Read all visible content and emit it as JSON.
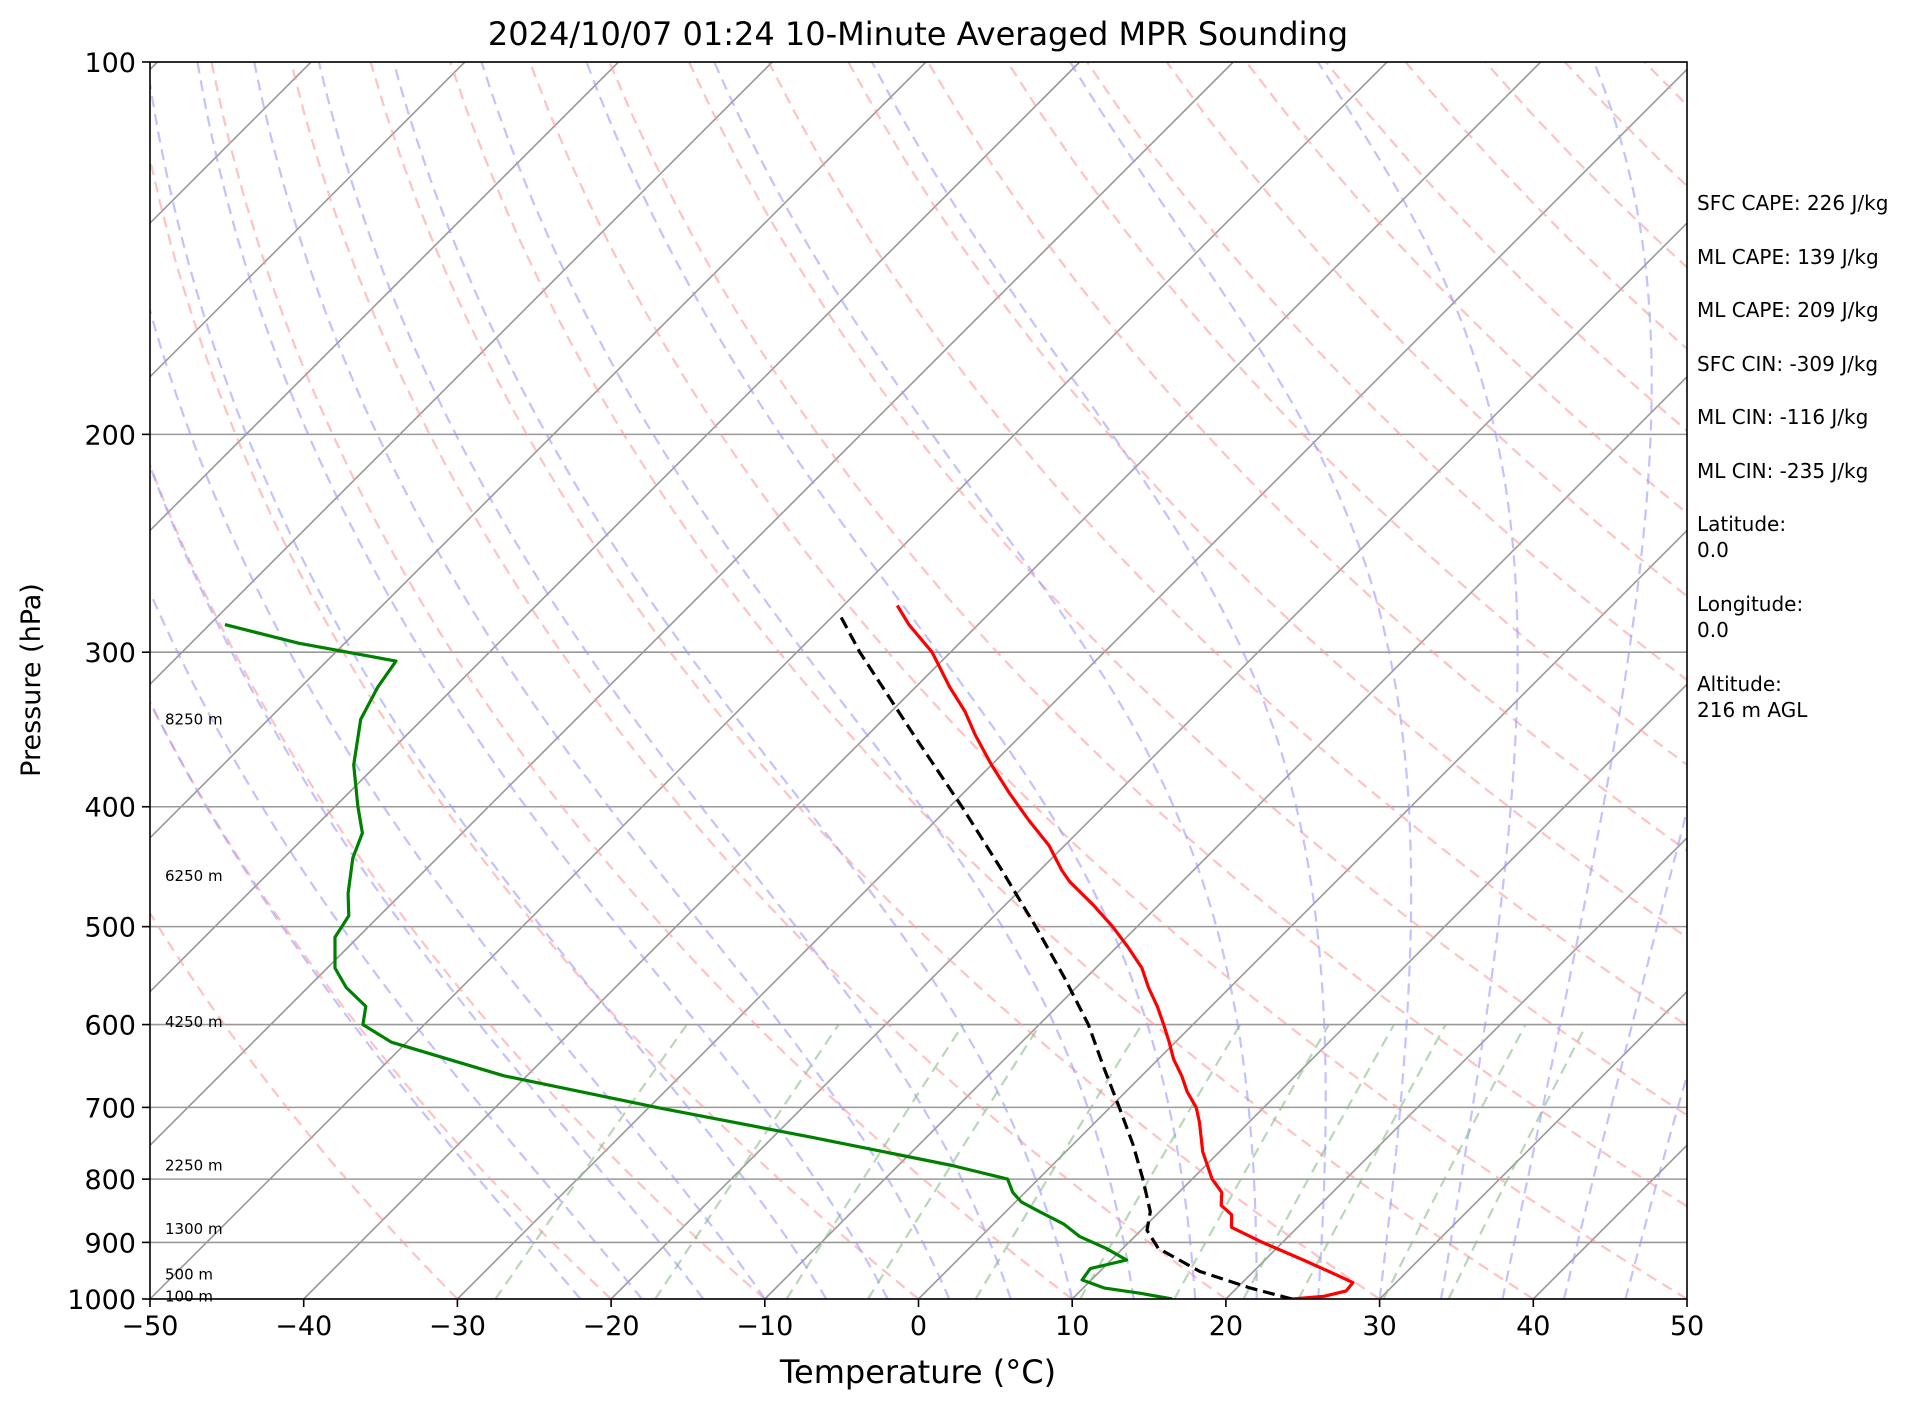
{
  "chart_data": {
    "type": "skew-t",
    "title": "2024/10/07 01:24 10-Minute Averaged MPR Sounding",
    "xlabel": "Temperature (°C)",
    "ylabel": "Pressure (hPa)",
    "xlim": [
      -50,
      50
    ],
    "ylim": [
      1000,
      100
    ],
    "y_scale": "log",
    "x_ticks": [
      "−50",
      "−40",
      "−30",
      "−20",
      "−10",
      "0",
      "10",
      "20",
      "30",
      "40",
      "50"
    ],
    "y_ticks": [
      "100",
      "200",
      "300",
      "400",
      "500",
      "600",
      "700",
      "800",
      "900",
      "1000"
    ],
    "height_labels": [
      {
        "text": "8250 m",
        "pressure": 340
      },
      {
        "text": "6250 m",
        "pressure": 455
      },
      {
        "text": "4250 m",
        "pressure": 597
      },
      {
        "text": "2250 m",
        "pressure": 780
      },
      {
        "text": "1300 m",
        "pressure": 878
      },
      {
        "text": "500 m",
        "pressure": 955
      },
      {
        "text": "100 m",
        "pressure": 995
      }
    ],
    "series": [
      {
        "role": "temperature",
        "color": "#ff0000",
        "points": [
          [
            1000,
            24.3
          ],
          [
            995,
            26.2
          ],
          [
            985,
            27.3
          ],
          [
            970,
            27.2
          ],
          [
            955,
            25.5
          ],
          [
            930,
            22.5
          ],
          [
            900,
            18.7
          ],
          [
            875,
            15.7
          ],
          [
            855,
            14.9
          ],
          [
            840,
            13.6
          ],
          [
            820,
            12.8
          ],
          [
            800,
            11.3
          ],
          [
            760,
            8.9
          ],
          [
            720,
            6.8
          ],
          [
            700,
            5.6
          ],
          [
            680,
            4.0
          ],
          [
            660,
            2.6
          ],
          [
            640,
            1.0
          ],
          [
            620,
            -0.4
          ],
          [
            600,
            -1.9
          ],
          [
            580,
            -3.5
          ],
          [
            560,
            -5.3
          ],
          [
            540,
            -7.0
          ],
          [
            520,
            -9.2
          ],
          [
            500,
            -11.6
          ],
          [
            480,
            -14.3
          ],
          [
            460,
            -17.3
          ],
          [
            450,
            -18.6
          ],
          [
            430,
            -21.0
          ],
          [
            410,
            -24.0
          ],
          [
            390,
            -27.0
          ],
          [
            370,
            -30.0
          ],
          [
            350,
            -33.0
          ],
          [
            335,
            -35.2
          ],
          [
            320,
            -37.8
          ],
          [
            300,
            -41.2
          ],
          [
            285,
            -44.5
          ],
          [
            275,
            -46.5
          ]
        ]
      },
      {
        "role": "dewpoint",
        "color": "#008000",
        "points": [
          [
            1000,
            16.5
          ],
          [
            990,
            14.2
          ],
          [
            980,
            11.4
          ],
          [
            965,
            9.4
          ],
          [
            945,
            9.2
          ],
          [
            930,
            11.0
          ],
          [
            910,
            8.9
          ],
          [
            890,
            6.4
          ],
          [
            870,
            4.6
          ],
          [
            850,
            2.2
          ],
          [
            835,
            0.4
          ],
          [
            820,
            -0.8
          ],
          [
            800,
            -2.0
          ],
          [
            780,
            -6.5
          ],
          [
            740,
            -17.5
          ],
          [
            700,
            -29.5
          ],
          [
            660,
            -41.5
          ],
          [
            620,
            -51.0
          ],
          [
            600,
            -54.0
          ],
          [
            580,
            -55.0
          ],
          [
            560,
            -57.5
          ],
          [
            540,
            -59.5
          ],
          [
            510,
            -61.5
          ],
          [
            490,
            -62.0
          ],
          [
            470,
            -63.5
          ],
          [
            440,
            -65.5
          ],
          [
            420,
            -66.5
          ],
          [
            400,
            -68.5
          ],
          [
            370,
            -71.5
          ],
          [
            340,
            -74.0
          ],
          [
            320,
            -75.0
          ],
          [
            305,
            -75.5
          ],
          [
            295,
            -83.0
          ],
          [
            285,
            -89.0
          ]
        ]
      },
      {
        "role": "parcel",
        "color": "#000000",
        "style": "dashed",
        "points": [
          [
            1000,
            24.3
          ],
          [
            980,
            20.9
          ],
          [
            950,
            16.5
          ],
          [
            910,
            12.3
          ],
          [
            880,
            10.4
          ],
          [
            850,
            9.4
          ],
          [
            800,
            6.8
          ],
          [
            750,
            3.9
          ],
          [
            700,
            0.6
          ],
          [
            650,
            -3.0
          ],
          [
            600,
            -6.8
          ],
          [
            550,
            -11.4
          ],
          [
            500,
            -16.6
          ],
          [
            450,
            -22.5
          ],
          [
            400,
            -29.2
          ],
          [
            350,
            -37.0
          ],
          [
            300,
            -45.9
          ],
          [
            280,
            -49.6
          ]
        ]
      }
    ],
    "background_lines": {
      "isotherms_color": "#999999",
      "dry_adiabats_color": "#ff9999",
      "moist_adiabats_color": "#9999ff",
      "mixing_ratio_color": "#88bb88"
    }
  },
  "info_panel": [
    "SFC CAPE: 226 J/kg",
    "ML CAPE: 139 J/kg",
    "ML CAPE: 209 J/kg",
    "SFC CIN: -309 J/kg",
    "ML CIN: -116 J/kg",
    "ML CIN: -235 J/kg",
    "Latitude:\n0.0",
    "Longitude:\n0.0",
    "Altitude:\n216 m AGL"
  ]
}
